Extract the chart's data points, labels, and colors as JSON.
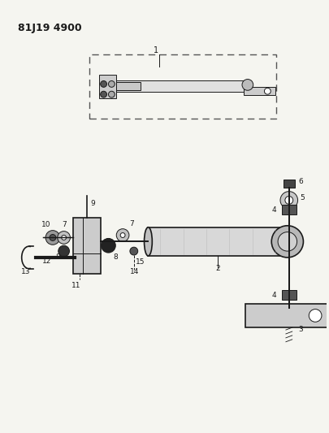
{
  "title": "81J19 4900",
  "bg_color": "#f5f5f0",
  "lc": "#1a1a1a",
  "figsize": [
    4.06,
    5.33
  ],
  "dpi": 100
}
